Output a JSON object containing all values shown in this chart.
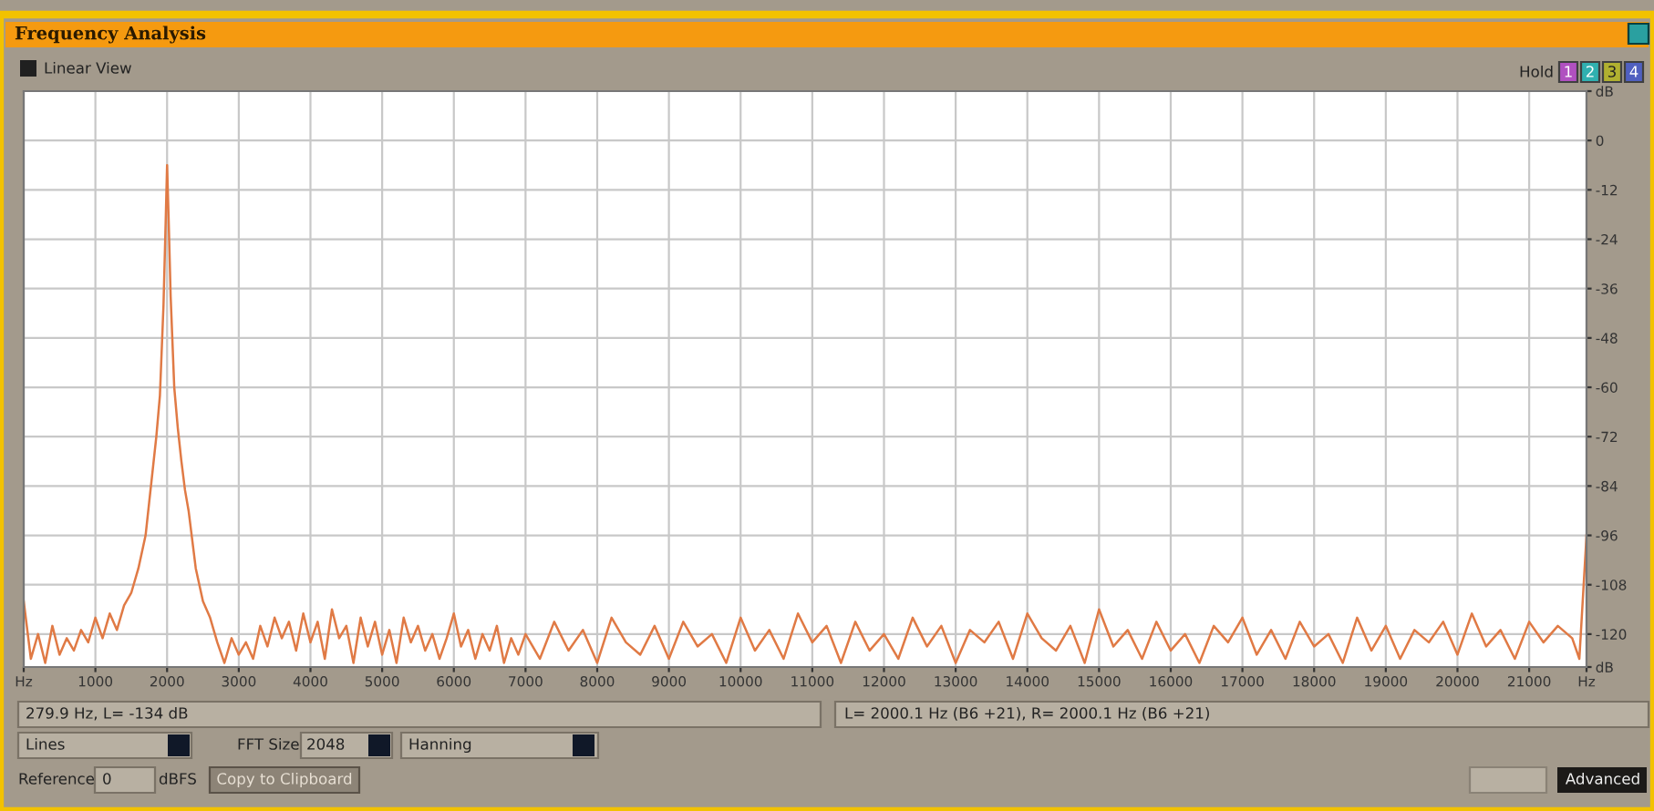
{
  "chart_data": {
    "type": "line",
    "title": "Frequency Analysis",
    "x": [
      0,
      100,
      200,
      300,
      400,
      500,
      600,
      700,
      800,
      900,
      1000,
      1100,
      1200,
      1300,
      1400,
      1500,
      1600,
      1700,
      1750,
      1800,
      1850,
      1900,
      1950,
      1980,
      2000,
      2020,
      2050,
      2100,
      2150,
      2200,
      2250,
      2300,
      2400,
      2500,
      2600,
      2700,
      2800,
      2900,
      3000,
      3100,
      3200,
      3300,
      3400,
      3500,
      3600,
      3700,
      3800,
      3900,
      4000,
      4100,
      4200,
      4300,
      4400,
      4500,
      4600,
      4700,
      4800,
      4900,
      5000,
      5100,
      5200,
      5300,
      5400,
      5500,
      5600,
      5700,
      5800,
      5900,
      6000,
      6100,
      6200,
      6300,
      6400,
      6500,
      6600,
      6700,
      6800,
      6900,
      7000,
      7200,
      7400,
      7600,
      7800,
      8000,
      8200,
      8400,
      8600,
      8800,
      9000,
      9200,
      9400,
      9600,
      9800,
      10000,
      10200,
      10400,
      10600,
      10800,
      11000,
      11200,
      11400,
      11600,
      11800,
      12000,
      12200,
      12400,
      12600,
      12800,
      13000,
      13200,
      13400,
      13600,
      13800,
      14000,
      14200,
      14400,
      14600,
      14800,
      15000,
      15200,
      15400,
      15600,
      15800,
      16000,
      16200,
      16400,
      16600,
      16800,
      17000,
      17200,
      17400,
      17600,
      17800,
      18000,
      18200,
      18400,
      18600,
      18800,
      19000,
      19200,
      19400,
      19600,
      19800,
      20000,
      20200,
      20400,
      20600,
      20800,
      21000,
      21200,
      21400,
      21600,
      21700,
      21800
    ],
    "series": [
      {
        "color": "#e07a45",
        "values": [
          -112,
          -126,
          -120,
          -127,
          -118,
          -125,
          -121,
          -124,
          -119,
          -122,
          -116,
          -121,
          -115,
          -119,
          -113,
          -110,
          -104,
          -96,
          -88,
          -80,
          -72,
          -62,
          -40,
          -20,
          -6,
          -18,
          -38,
          -60,
          -70,
          -78,
          -85,
          -90,
          -104,
          -112,
          -116,
          -122,
          -127,
          -121,
          -125,
          -122,
          -126,
          -118,
          -123,
          -116,
          -121,
          -117,
          -124,
          -115,
          -122,
          -117,
          -126,
          -114,
          -121,
          -118,
          -127,
          -116,
          -123,
          -117,
          -125,
          -119,
          -127,
          -116,
          -122,
          -118,
          -124,
          -120,
          -126,
          -121,
          -115,
          -123,
          -119,
          -126,
          -120,
          -124,
          -118,
          -127,
          -121,
          -125,
          -120,
          -126,
          -117,
          -124,
          -119,
          -127,
          -116,
          -122,
          -125,
          -118,
          -126,
          -117,
          -123,
          -120,
          -127,
          -116,
          -124,
          -119,
          -126,
          -115,
          -122,
          -118,
          -127,
          -117,
          -124,
          -120,
          -126,
          -116,
          -123,
          -118,
          -127,
          -119,
          -122,
          -117,
          -126,
          -115,
          -121,
          -124,
          -118,
          -127,
          -114,
          -123,
          -119,
          -126,
          -117,
          -124,
          -120,
          -127,
          -118,
          -122,
          -116,
          -125,
          -119,
          -126,
          -117,
          -123,
          -120,
          -127,
          -116,
          -124,
          -118,
          -126,
          -119,
          -122,
          -117,
          -125,
          -115,
          -123,
          -119,
          -126,
          -117,
          -122,
          -118,
          -121,
          -126,
          -96
        ]
      }
    ],
    "xlim": [
      0,
      21800
    ],
    "ylim": [
      -128,
      12
    ],
    "xticks": [
      {
        "value": 0,
        "label": "Hz"
      },
      1000,
      2000,
      3000,
      4000,
      5000,
      6000,
      7000,
      8000,
      9000,
      10000,
      11000,
      12000,
      13000,
      14000,
      15000,
      16000,
      17000,
      18000,
      19000,
      20000,
      21000,
      {
        "value": 21800,
        "label": "Hz"
      }
    ],
    "yticks": [
      {
        "value": 12,
        "label": "dB"
      },
      0,
      -12,
      -24,
      -36,
      -48,
      -60,
      -72,
      -84,
      -96,
      -108,
      -120,
      {
        "value": -128,
        "label": "dB"
      }
    ],
    "grid": true,
    "marker": "none",
    "line_style": "solid",
    "annotations": [
      "Linear View",
      "Hold",
      "1",
      "2",
      "3",
      "4",
      "279.9 Hz, L= -134 dB",
      "L= 2000.1 Hz (B6 +21), R= 2000.1 Hz (B6 +21)",
      "Lines",
      "FFT Size",
      "2048",
      "Hanning",
      "Reference",
      "0",
      "dBFS",
      "Copy to Clipboard",
      "Advanced"
    ]
  }
}
